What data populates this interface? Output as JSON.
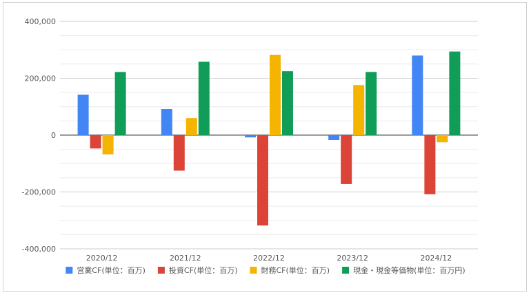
{
  "chart_data": {
    "type": "bar",
    "categories": [
      "2020/12",
      "2021/12",
      "2022/12",
      "2023/12",
      "2024/12"
    ],
    "series": [
      {
        "name": "営業CF(単位：百万)",
        "color": "#4285f4",
        "values": [
          142000,
          92000,
          -8000,
          -17000,
          280000
        ]
      },
      {
        "name": "投資CF(単位：百万)",
        "color": "#db4437",
        "values": [
          -47000,
          -125000,
          -318000,
          -172000,
          -208000
        ]
      },
      {
        "name": "財務CF(単位：百万)",
        "color": "#f4b400",
        "values": [
          -68000,
          60000,
          282000,
          176000,
          -25000
        ]
      },
      {
        "name": "現金・現金等価物(単位：百万円)",
        "color": "#0f9d58",
        "values": [
          222000,
          258000,
          225000,
          222000,
          294000
        ]
      }
    ],
    "yticks": [
      "400,000",
      "200,000",
      "0",
      "-200,000",
      "-400,000"
    ],
    "ylim": [
      -400000,
      400000
    ],
    "grid": true,
    "legend_position": "bottom",
    "xlabel": "",
    "ylabel": "",
    "title": ""
  }
}
